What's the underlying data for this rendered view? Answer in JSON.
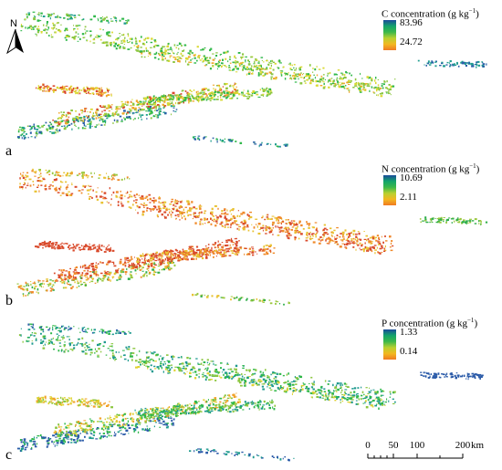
{
  "panels": [
    {
      "id": "a",
      "legend": {
        "title_prefix": "C concentration (g kg",
        "title_exp": "−1",
        "title_suffix": ")",
        "max": "83.96",
        "min": "24.72"
      },
      "colors": [
        "#2a5fa8",
        "#1f9e8f",
        "#2fb84a",
        "#8cc63f",
        "#d9d932",
        "#f0a62a",
        "#d9472b"
      ]
    },
    {
      "id": "b",
      "legend": {
        "title_prefix": "N concentration (g kg",
        "title_exp": "−1",
        "title_suffix": ")",
        "max": "10.69",
        "min": "2.11"
      },
      "colors": [
        "#2a4f9a",
        "#1f8f8a",
        "#2fae4a",
        "#9ac83f",
        "#e8c232",
        "#f08a2a",
        "#d94a2b"
      ]
    },
    {
      "id": "c",
      "legend": {
        "title_prefix": "P concentration (g kg",
        "title_exp": "−1",
        "title_suffix": ")",
        "max": "1.33",
        "min": "0.14"
      },
      "colors": [
        "#2a5aa8",
        "#1f9a8f",
        "#2fb84a",
        "#8cc63f",
        "#e0d232",
        "#f0a22a",
        "#d94a2b"
      ]
    }
  ],
  "north_arrow": {
    "letter": "N"
  },
  "scale_bar": {
    "ticks": [
      "0",
      "50",
      "100",
      "200"
    ],
    "unit": "km"
  },
  "ramps": {
    "a": [
      "#1a4a9a",
      "#13a36b",
      "#3cb84a",
      "#b8d030",
      "#f2b820",
      "#f07a22"
    ],
    "b": [
      "#1a4a9a",
      "#13a36b",
      "#3cb84a",
      "#b8d030",
      "#f2b820",
      "#f07a22"
    ],
    "c": [
      "#1a4a9a",
      "#13a36b",
      "#3cb84a",
      "#b8d030",
      "#f2b820",
      "#f07a22"
    ]
  }
}
